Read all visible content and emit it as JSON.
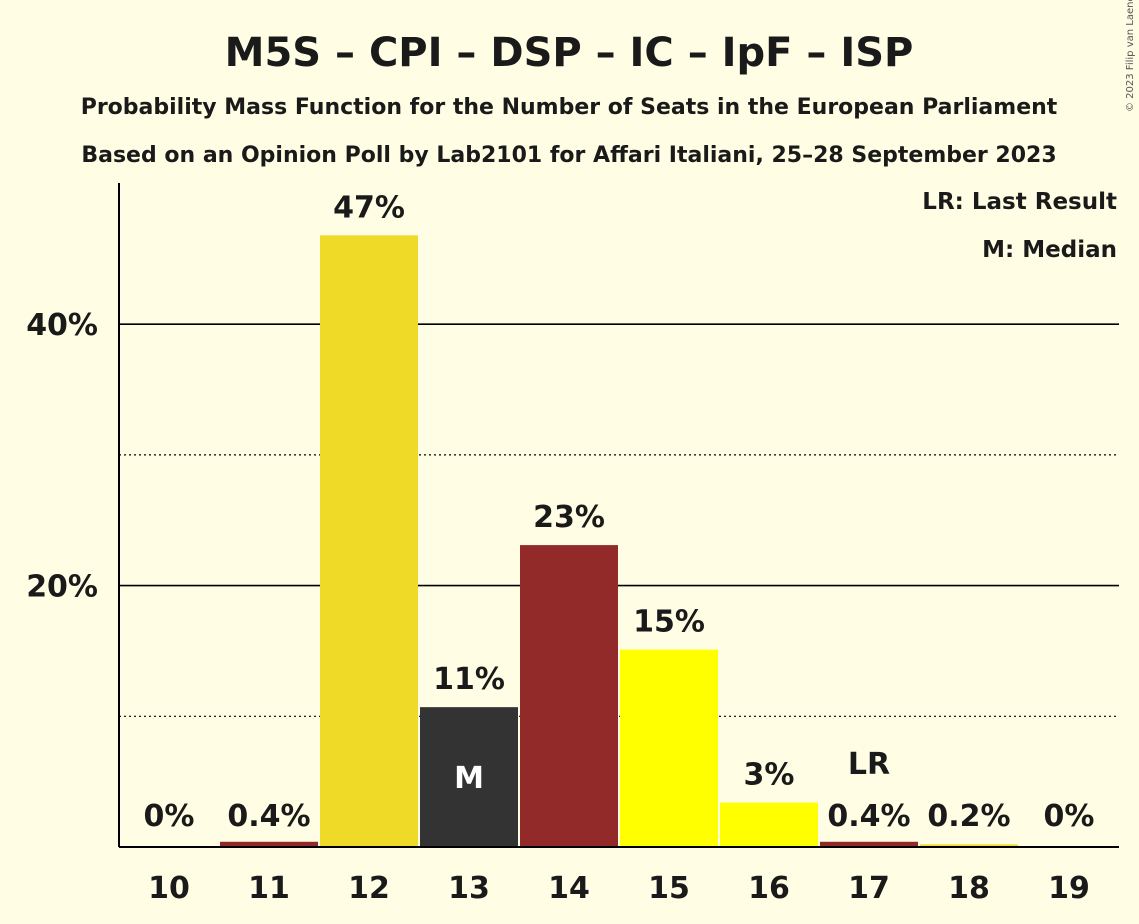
{
  "header": {
    "title": "M5S – CPI – DSP – IC – IpF – ISP",
    "subtitle1": "Probability Mass Function for the Number of Seats in the European Parliament",
    "subtitle2": "Based on an Opinion Poll by Lab2101 for Affari Italiani, 25–28 September 2023",
    "copyright": "© 2023 Filip van Laenen"
  },
  "legend": {
    "lr": "LR: Last Result",
    "m": "M: Median"
  },
  "chart_data": {
    "type": "bar",
    "categories": [
      "10",
      "11",
      "12",
      "13",
      "14",
      "15",
      "16",
      "17",
      "18",
      "19"
    ],
    "values": [
      0,
      0.4,
      47,
      11,
      23,
      15,
      3,
      0.4,
      0.2,
      0
    ],
    "plot_values": [
      0,
      0.4,
      46.8,
      10.7,
      23.1,
      15.1,
      3.4,
      0.4,
      0.2,
      0
    ],
    "labels": [
      "0%",
      "0.4%",
      "47%",
      "11%",
      "23%",
      "15%",
      "3%",
      "0.4%",
      "0.2%",
      "0%"
    ],
    "colors": [
      "#922A2A",
      "#922A2A",
      "#EEDA27",
      "#333333",
      "#922A2A",
      "#FFFF00",
      "#FFFF00",
      "#922A2A",
      "#EEDA27",
      "#922A2A"
    ],
    "ylim": [
      0,
      50
    ],
    "yticks": [
      20,
      40
    ],
    "ytick_labels": [
      "20%",
      "40%"
    ],
    "minor_gridlines": [
      10,
      30
    ],
    "median_index": 3,
    "median_marker": "M",
    "last_result_index": 7,
    "last_result_marker": "LR",
    "xlabel": "",
    "ylabel": ""
  }
}
